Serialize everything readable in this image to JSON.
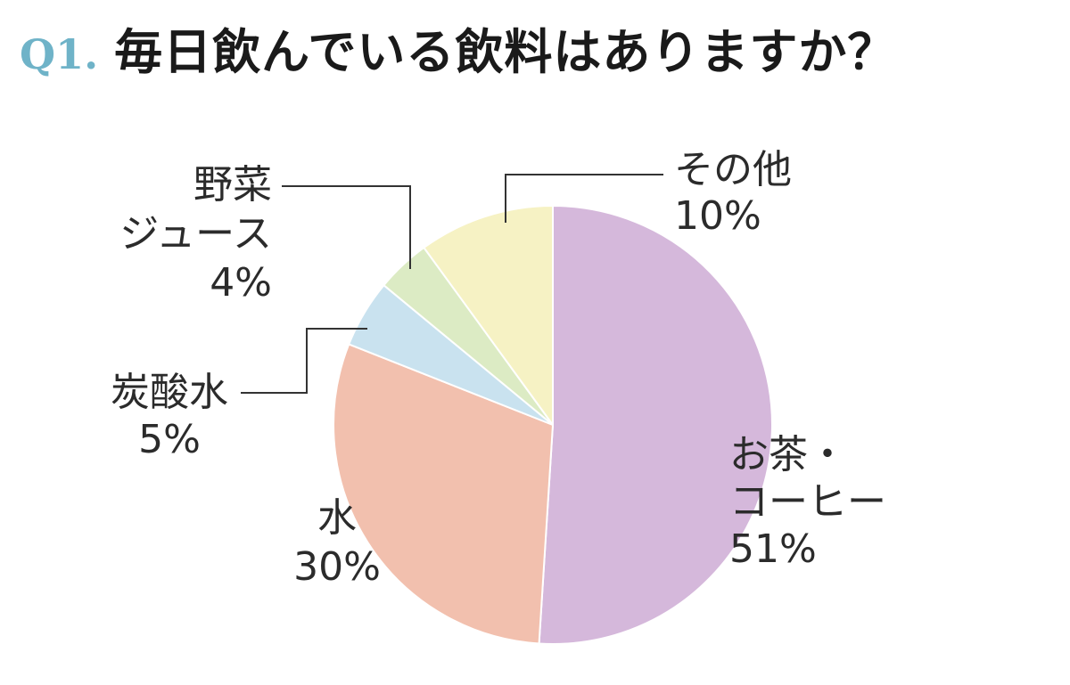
{
  "title": {
    "number": "Q1.",
    "text": "毎日飲んでいる飲料はありますか？"
  },
  "chart_data": {
    "type": "pie",
    "title": "毎日飲んでいる飲料はありますか？",
    "start_angle_deg": 0,
    "direction": "clockwise",
    "slices": [
      {
        "label_lines": [
          "お茶・",
          "コーヒー"
        ],
        "percent_label": "51%",
        "value": 51,
        "color": "#d5b8db"
      },
      {
        "label_lines": [
          "水"
        ],
        "percent_label": "30%",
        "value": 30,
        "color": "#f2c0ae"
      },
      {
        "label_lines": [
          "炭酸水"
        ],
        "percent_label": "5%",
        "value": 5,
        "color": "#c9e2ef"
      },
      {
        "label_lines": [
          "野菜",
          "ジュース"
        ],
        "percent_label": "4%",
        "value": 4,
        "color": "#dcebc4"
      },
      {
        "label_lines": [
          "その他"
        ],
        "percent_label": "10%",
        "value": 10,
        "color": "#f6f2c4"
      }
    ]
  }
}
